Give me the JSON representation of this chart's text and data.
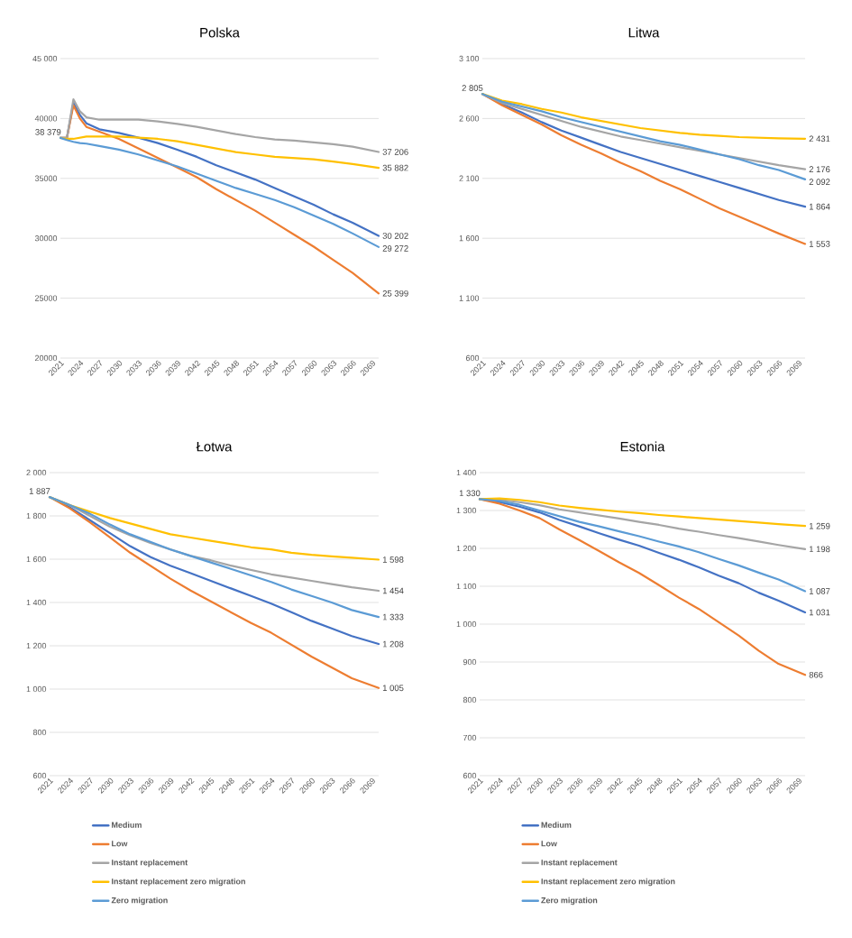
{
  "chart_data": [
    {
      "type": "line",
      "title": "Polska",
      "x": [
        2021,
        2022,
        2023,
        2024,
        2025,
        2027,
        2030,
        2033,
        2036,
        2039,
        2042,
        2045,
        2048,
        2051,
        2054,
        2057,
        2060,
        2063,
        2066,
        2070
      ],
      "xlim": [
        2021,
        2070
      ],
      "xticks": [
        2021,
        2024,
        2027,
        2030,
        2033,
        2036,
        2039,
        2042,
        2045,
        2048,
        2051,
        2054,
        2057,
        2060,
        2063,
        2066,
        2069
      ],
      "ylim": [
        20000,
        45000
      ],
      "yticks": [
        20000,
        25000,
        30000,
        35000,
        40000,
        {
          "value": 45000,
          "label": "45 000"
        }
      ],
      "grid": "y",
      "legend": false,
      "marker": "none",
      "line_style": "solid",
      "series": [
        {
          "color": "#4472c4",
          "values": [
            38379,
            38379,
            41300,
            40300,
            39600,
            39100,
            38800,
            38400,
            37950,
            37400,
            36800,
            36100,
            35500,
            34900,
            34200,
            33500,
            32800,
            32000,
            31300,
            30202
          ],
          "value_labels": [
            null,
            null,
            null,
            null,
            null,
            null,
            null,
            null,
            null,
            null,
            null,
            null,
            null,
            null,
            null,
            null,
            null,
            null,
            null,
            "30 202"
          ]
        },
        {
          "color": "#ed7d31",
          "values": [
            38379,
            38379,
            41100,
            40000,
            39300,
            38900,
            38300,
            37500,
            36700,
            35900,
            35100,
            34100,
            33200,
            32300,
            31300,
            30300,
            29300,
            28200,
            27100,
            25399
          ],
          "value_labels": [
            null,
            null,
            null,
            null,
            null,
            null,
            null,
            null,
            null,
            null,
            null,
            null,
            null,
            null,
            null,
            null,
            null,
            null,
            null,
            "25 399"
          ]
        },
        {
          "color": "#a5a5a5",
          "values": [
            38379,
            38379,
            41600,
            40600,
            40100,
            39900,
            39900,
            39900,
            39750,
            39550,
            39300,
            39000,
            38700,
            38450,
            38250,
            38150,
            38000,
            37850,
            37650,
            37206
          ],
          "value_labels": [
            null,
            null,
            null,
            null,
            null,
            null,
            null,
            null,
            null,
            null,
            null,
            null,
            null,
            null,
            null,
            null,
            null,
            null,
            null,
            "37 206"
          ]
        },
        {
          "color": "#ffc000",
          "values": [
            38379,
            38300,
            38300,
            38400,
            38500,
            38500,
            38500,
            38400,
            38300,
            38100,
            37800,
            37500,
            37200,
            37000,
            36800,
            36700,
            36600,
            36400,
            36200,
            35882
          ],
          "value_labels": [
            null,
            null,
            null,
            null,
            null,
            null,
            null,
            null,
            null,
            null,
            null,
            null,
            null,
            null,
            null,
            null,
            null,
            null,
            null,
            "35 882"
          ]
        },
        {
          "color": "#5b9bd5",
          "values": [
            38379,
            38200,
            38050,
            37950,
            37900,
            37700,
            37400,
            37000,
            36500,
            36000,
            35400,
            34800,
            34200,
            33700,
            33200,
            32600,
            31900,
            31200,
            30400,
            29272
          ],
          "value_labels": [
            "38 379",
            null,
            null,
            null,
            null,
            null,
            null,
            null,
            null,
            null,
            null,
            null,
            null,
            null,
            null,
            null,
            null,
            null,
            null,
            "29 272"
          ]
        }
      ]
    },
    {
      "type": "line",
      "title": "Litwa",
      "x": [
        2021,
        2024,
        2027,
        2030,
        2033,
        2036,
        2039,
        2042,
        2045,
        2048,
        2051,
        2054,
        2057,
        2060,
        2063,
        2066,
        2070
      ],
      "xlim": [
        2021,
        2070
      ],
      "xticks": [
        2021,
        2024,
        2027,
        2030,
        2033,
        2036,
        2039,
        2042,
        2045,
        2048,
        2051,
        2054,
        2057,
        2060,
        2063,
        2066,
        2069
      ],
      "ylim": [
        600,
        3100
      ],
      "yticks": [
        600,
        {
          "value": 1100,
          "label": "1 100"
        },
        {
          "value": 1600,
          "label": "1 600"
        },
        {
          "value": 2100,
          "label": "2 100"
        },
        {
          "value": 2600,
          "label": "2 600"
        },
        {
          "value": 3100,
          "label": "3 100"
        }
      ],
      "grid": "y",
      "legend": false,
      "marker": "none",
      "line_style": "solid",
      "series": [
        {
          "color": "#4472c4",
          "values": [
            2805,
            2720,
            2650,
            2570,
            2500,
            2440,
            2380,
            2320,
            2270,
            2220,
            2170,
            2120,
            2070,
            2020,
            1970,
            1920,
            1864
          ],
          "value_labels": [
            null,
            null,
            null,
            null,
            null,
            null,
            null,
            null,
            null,
            null,
            null,
            null,
            null,
            null,
            null,
            null,
            "1 864"
          ]
        },
        {
          "color": "#ed7d31",
          "values": [
            2805,
            2710,
            2630,
            2550,
            2460,
            2380,
            2310,
            2230,
            2160,
            2080,
            2010,
            1930,
            1850,
            1780,
            1710,
            1640,
            1553
          ],
          "value_labels": [
            null,
            null,
            null,
            null,
            null,
            null,
            null,
            null,
            null,
            null,
            null,
            null,
            null,
            null,
            null,
            null,
            "1 553"
          ]
        },
        {
          "color": "#a5a5a5",
          "values": [
            2805,
            2730,
            2680,
            2630,
            2580,
            2530,
            2490,
            2450,
            2420,
            2390,
            2360,
            2330,
            2300,
            2270,
            2240,
            2210,
            2176
          ],
          "value_labels": [
            null,
            null,
            null,
            null,
            null,
            null,
            null,
            null,
            null,
            null,
            null,
            null,
            null,
            null,
            null,
            null,
            "2 176"
          ]
        },
        {
          "color": "#ffc000",
          "values": [
            2805,
            2750,
            2720,
            2680,
            2650,
            2610,
            2580,
            2550,
            2520,
            2500,
            2480,
            2465,
            2455,
            2445,
            2440,
            2435,
            2431
          ],
          "value_labels": [
            null,
            null,
            null,
            null,
            null,
            null,
            null,
            null,
            null,
            null,
            null,
            null,
            null,
            null,
            null,
            null,
            "2 431"
          ]
        },
        {
          "color": "#5b9bd5",
          "values": [
            2805,
            2740,
            2700,
            2660,
            2610,
            2570,
            2530,
            2490,
            2450,
            2410,
            2380,
            2340,
            2300,
            2260,
            2210,
            2170,
            2092
          ],
          "value_labels": [
            "2 805",
            null,
            null,
            null,
            null,
            null,
            null,
            null,
            null,
            null,
            null,
            null,
            null,
            null,
            null,
            null,
            "2 092"
          ]
        }
      ]
    },
    {
      "type": "line",
      "title": "Łotwa",
      "x": [
        2021,
        2024,
        2027,
        2030,
        2033,
        2036,
        2039,
        2042,
        2045,
        2048,
        2051,
        2054,
        2057,
        2060,
        2063,
        2066,
        2070
      ],
      "xlim": [
        2021,
        2070
      ],
      "xticks": [
        2021,
        2024,
        2027,
        2030,
        2033,
        2036,
        2039,
        2042,
        2045,
        2048,
        2051,
        2054,
        2057,
        2060,
        2063,
        2066,
        2069
      ],
      "ylim": [
        600,
        2000
      ],
      "yticks": [
        600,
        800,
        {
          "value": 1000,
          "label": "1 000"
        },
        {
          "value": 1200,
          "label": "1 200"
        },
        {
          "value": 1400,
          "label": "1 400"
        },
        {
          "value": 1600,
          "label": "1 600"
        },
        {
          "value": 1800,
          "label": "1 800"
        },
        {
          "value": 2000,
          "label": "2 000"
        }
      ],
      "grid": "y",
      "legend": "bottom",
      "marker": "none",
      "line_style": "solid",
      "series": [
        {
          "name": "Medium",
          "color": "#4472c4",
          "values": [
            1887,
            1840,
            1780,
            1720,
            1660,
            1610,
            1570,
            1535,
            1500,
            1465,
            1430,
            1395,
            1355,
            1315,
            1280,
            1245,
            1208
          ],
          "value_labels": [
            null,
            null,
            null,
            null,
            null,
            null,
            null,
            null,
            null,
            null,
            null,
            null,
            null,
            null,
            null,
            null,
            "1 208"
          ]
        },
        {
          "name": "Low",
          "color": "#ed7d31",
          "values": [
            1887,
            1835,
            1770,
            1700,
            1630,
            1570,
            1510,
            1455,
            1405,
            1355,
            1305,
            1260,
            1205,
            1150,
            1100,
            1050,
            1005
          ],
          "value_labels": [
            null,
            null,
            null,
            null,
            null,
            null,
            null,
            null,
            null,
            null,
            null,
            null,
            null,
            null,
            null,
            null,
            "1 005"
          ]
        },
        {
          "name": "Instant replacement",
          "color": "#a5a5a5",
          "values": [
            1887,
            1850,
            1800,
            1750,
            1710,
            1675,
            1645,
            1615,
            1595,
            1570,
            1550,
            1530,
            1515,
            1500,
            1485,
            1470,
            1454
          ],
          "value_labels": [
            null,
            null,
            null,
            null,
            null,
            null,
            null,
            null,
            null,
            null,
            null,
            null,
            null,
            null,
            null,
            null,
            "1 454"
          ]
        },
        {
          "name": "Instant replacement zero migration",
          "color": "#ffc000",
          "values": [
            1887,
            1850,
            1820,
            1790,
            1765,
            1740,
            1715,
            1700,
            1685,
            1670,
            1655,
            1645,
            1630,
            1620,
            1613,
            1607,
            1598
          ],
          "value_labels": [
            null,
            null,
            null,
            null,
            null,
            null,
            null,
            null,
            null,
            null,
            null,
            null,
            null,
            null,
            null,
            null,
            "1 598"
          ]
        },
        {
          "name": "Zero migration",
          "color": "#5b9bd5",
          "values": [
            1887,
            1850,
            1810,
            1760,
            1715,
            1680,
            1645,
            1615,
            1585,
            1555,
            1525,
            1495,
            1460,
            1430,
            1400,
            1365,
            1333
          ],
          "value_labels": [
            "1 887",
            null,
            null,
            null,
            null,
            null,
            null,
            null,
            null,
            null,
            null,
            null,
            null,
            null,
            null,
            null,
            "1 333"
          ]
        }
      ]
    },
    {
      "type": "line",
      "title": "Estonia",
      "x": [
        2021,
        2024,
        2027,
        2030,
        2033,
        2036,
        2039,
        2042,
        2045,
        2048,
        2051,
        2054,
        2057,
        2060,
        2063,
        2066,
        2070
      ],
      "xlim": [
        2021,
        2070
      ],
      "xticks": [
        2021,
        2024,
        2027,
        2030,
        2033,
        2036,
        2039,
        2042,
        2045,
        2048,
        2051,
        2054,
        2057,
        2060,
        2063,
        2066,
        2069
      ],
      "ylim": [
        600,
        1400
      ],
      "yticks": [
        600,
        700,
        800,
        900,
        {
          "value": 1000,
          "label": "1 000"
        },
        {
          "value": 1100,
          "label": "1 100"
        },
        {
          "value": 1200,
          "label": "1 200"
        },
        {
          "value": 1300,
          "label": "1 300"
        },
        {
          "value": 1400,
          "label": "1 400"
        }
      ],
      "grid": "y",
      "legend": "bottom",
      "marker": "none",
      "line_style": "solid",
      "series": [
        {
          "name": "Medium",
          "color": "#4472c4",
          "values": [
            1330,
            1322,
            1310,
            1295,
            1275,
            1258,
            1240,
            1223,
            1207,
            1188,
            1170,
            1150,
            1128,
            1108,
            1083,
            1062,
            1031
          ],
          "value_labels": [
            null,
            null,
            null,
            null,
            null,
            null,
            null,
            null,
            null,
            null,
            null,
            null,
            null,
            null,
            null,
            null,
            "1 031"
          ]
        },
        {
          "name": "Low",
          "color": "#ed7d31",
          "values": [
            1330,
            1318,
            1300,
            1280,
            1250,
            1222,
            1193,
            1163,
            1135,
            1103,
            1070,
            1040,
            1005,
            970,
            930,
            895,
            866
          ],
          "value_labels": [
            null,
            null,
            null,
            null,
            null,
            null,
            null,
            null,
            null,
            null,
            null,
            null,
            null,
            null,
            null,
            null,
            "866"
          ]
        },
        {
          "name": "Instant replacement",
          "color": "#a5a5a5",
          "values": [
            1330,
            1328,
            1322,
            1314,
            1303,
            1295,
            1287,
            1279,
            1270,
            1262,
            1252,
            1244,
            1235,
            1227,
            1218,
            1209,
            1198
          ],
          "value_labels": [
            null,
            null,
            null,
            null,
            null,
            null,
            null,
            null,
            null,
            null,
            null,
            null,
            null,
            null,
            null,
            null,
            "1 198"
          ]
        },
        {
          "name": "Instant replacement zero migration",
          "color": "#ffc000",
          "values": [
            1330,
            1332,
            1328,
            1322,
            1313,
            1307,
            1302,
            1297,
            1293,
            1288,
            1284,
            1280,
            1276,
            1272,
            1268,
            1264,
            1259
          ],
          "value_labels": [
            null,
            null,
            null,
            null,
            null,
            null,
            null,
            null,
            null,
            null,
            null,
            null,
            null,
            null,
            null,
            null,
            "1 259"
          ]
        },
        {
          "name": "Zero migration",
          "color": "#5b9bd5",
          "values": [
            1330,
            1325,
            1315,
            1300,
            1285,
            1270,
            1258,
            1245,
            1232,
            1218,
            1205,
            1190,
            1172,
            1155,
            1136,
            1118,
            1087
          ],
          "value_labels": [
            "1 330",
            null,
            null,
            null,
            null,
            null,
            null,
            null,
            null,
            null,
            null,
            null,
            null,
            null,
            null,
            null,
            "1 087"
          ]
        }
      ]
    }
  ]
}
